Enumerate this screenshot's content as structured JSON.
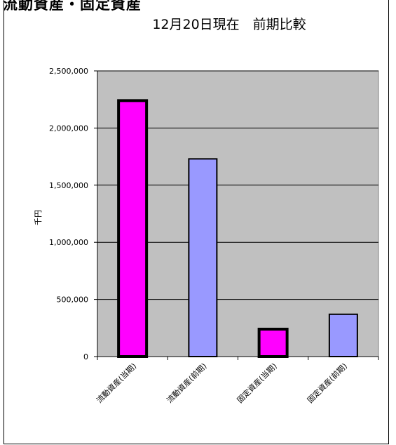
{
  "header": {
    "partial_title": "流動資産・固定資産"
  },
  "chart_data": {
    "type": "bar",
    "title": "12月20日現在　前期比較",
    "ylabel": "千円",
    "xlabel": "",
    "ylim": [
      0,
      2500000
    ],
    "y_ticks": [
      0,
      500000,
      1000000,
      1500000,
      2000000,
      2500000
    ],
    "y_tick_labels": [
      "0",
      "500,000",
      "1,000,000",
      "1,500,000",
      "2,000,000",
      "2,500,000"
    ],
    "categories": [
      "流動資産(当期)",
      "流動資産(前期)",
      "固定資産(当期)",
      "固定資産(前期)"
    ],
    "values": [
      2240000,
      1730000,
      240000,
      370000
    ],
    "bar_colors": [
      "#ff00ff",
      "#9999ff",
      "#ff00ff",
      "#9999ff"
    ],
    "bar_thick_border": [
      true,
      false,
      true,
      false
    ],
    "plot_background": "#c0c0c0",
    "grid": true
  }
}
